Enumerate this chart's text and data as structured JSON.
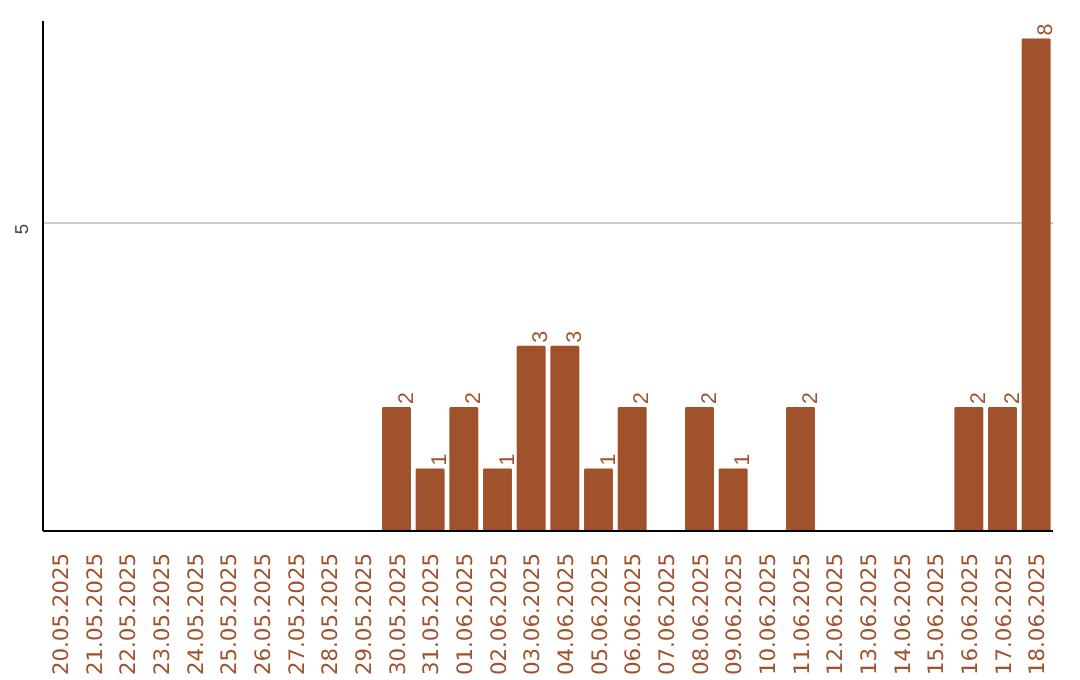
{
  "chart_data": {
    "type": "bar",
    "categories": [
      "20.05.2025",
      "21.05.2025",
      "22.05.2025",
      "23.05.2025",
      "24.05.2025",
      "25.05.2025",
      "26.05.2025",
      "27.05.2025",
      "28.05.2025",
      "29.05.2025",
      "30.05.2025",
      "31.05.2025",
      "01.06.2025",
      "02.06.2025",
      "03.06.2025",
      "04.06.2025",
      "05.06.2025",
      "06.06.2025",
      "07.06.2025",
      "08.06.2025",
      "09.06.2025",
      "10.06.2025",
      "11.06.2025",
      "12.06.2025",
      "13.06.2025",
      "14.06.2025",
      "15.06.2025",
      "16.06.2025",
      "17.06.2025",
      "18.06.2025"
    ],
    "values": [
      0,
      0,
      0,
      0,
      0,
      0,
      0,
      0,
      0,
      0,
      2,
      1,
      2,
      1,
      3,
      3,
      1,
      2,
      0,
      2,
      1,
      0,
      2,
      0,
      0,
      0,
      0,
      2,
      2,
      8
    ],
    "value_labels": [
      null,
      null,
      null,
      null,
      null,
      null,
      null,
      null,
      null,
      null,
      "2",
      "1",
      "2",
      "1",
      "3",
      "3",
      "1",
      "2",
      null,
      "2",
      "1",
      null,
      "2",
      null,
      null,
      null,
      null,
      "2",
      "2",
      "8"
    ],
    "color": "#a0522d",
    "ylim": [
      0,
      8.3
    ],
    "yticks": [
      5
    ],
    "grid": "y"
  }
}
